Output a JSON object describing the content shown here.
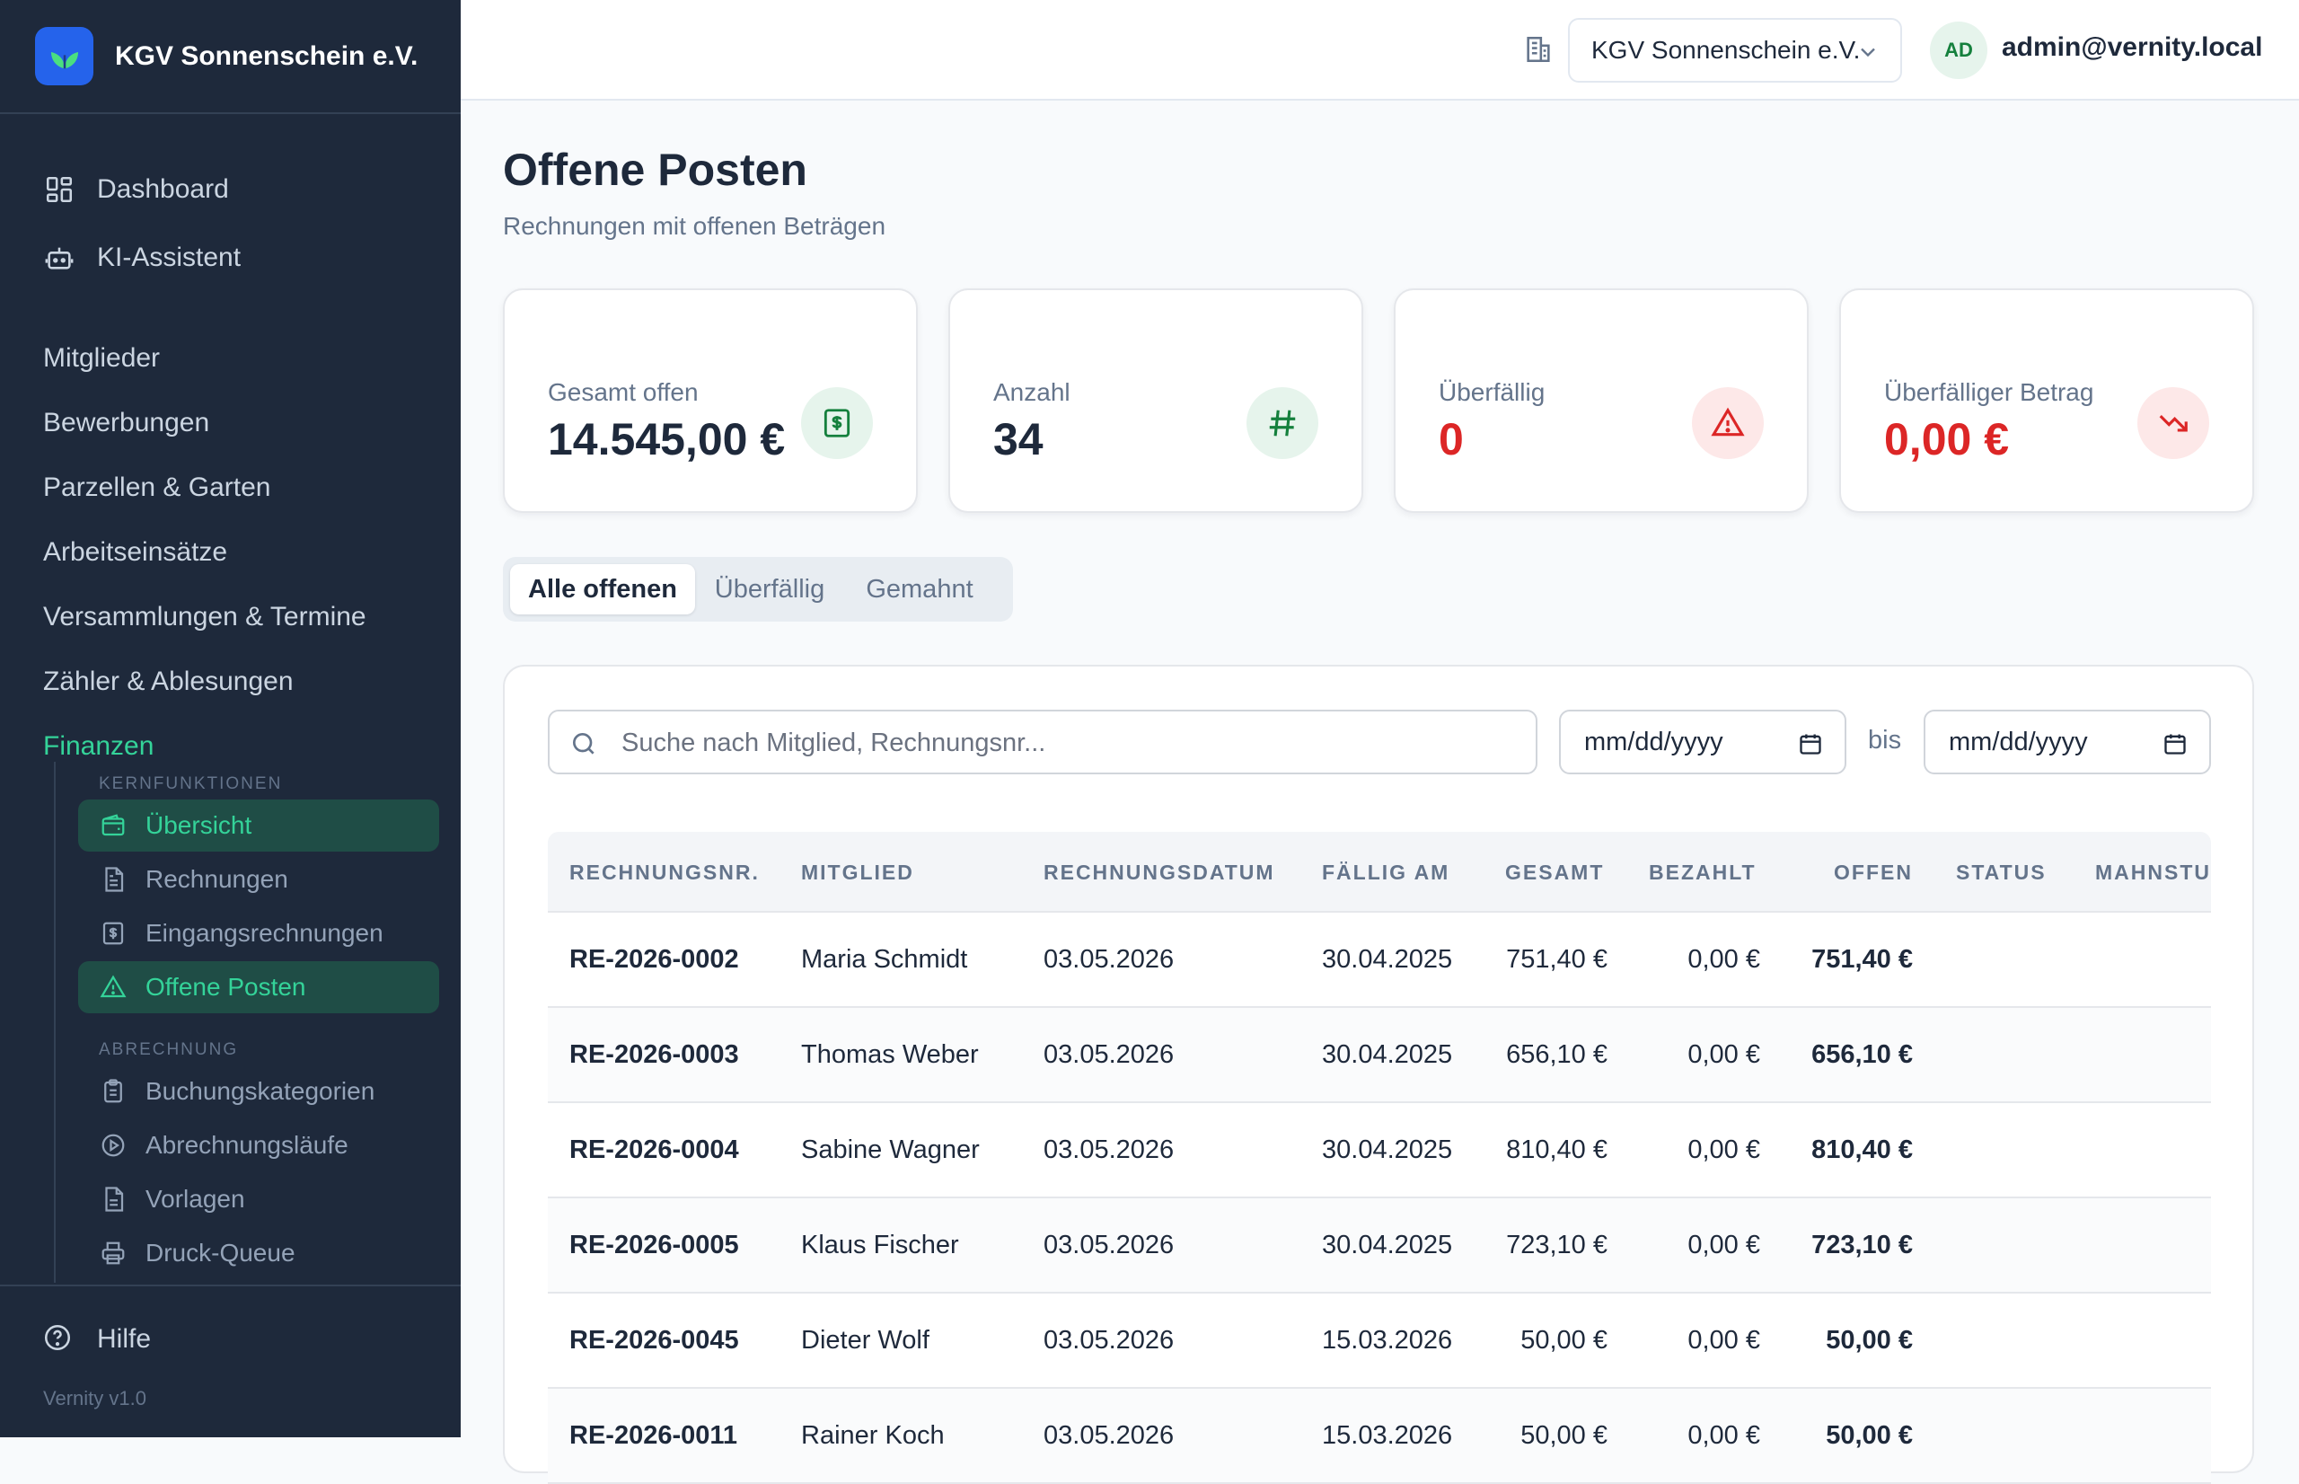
{
  "brand": {
    "name": "KGV Sonnenschein e.V."
  },
  "nav_top": [
    {
      "label": "Dashboard",
      "icon": "dashboard-icon"
    },
    {
      "label": "KI-Assistent",
      "icon": "robot-icon"
    }
  ],
  "nav_sections": [
    {
      "label": "Mitglieder"
    },
    {
      "label": "Bewerbungen"
    },
    {
      "label": "Parzellen & Garten"
    },
    {
      "label": "Arbeitseinsätze"
    },
    {
      "label": "Versammlungen & Termine"
    },
    {
      "label": "Zähler & Ablesungen"
    },
    {
      "label": "Finanzen"
    }
  ],
  "subnav": {
    "group1": "KERNFUNKTIONEN",
    "group1_items": [
      {
        "label": "Übersicht",
        "icon": "wallet-icon"
      },
      {
        "label": "Rechnungen",
        "icon": "document-icon"
      },
      {
        "label": "Eingangsrechnungen",
        "icon": "receipt-icon"
      },
      {
        "label": "Offene Posten",
        "icon": "warning-icon"
      }
    ],
    "group2": "ABRECHNUNG",
    "group2_items": [
      {
        "label": "Buchungskategorien",
        "icon": "clipboard-icon"
      },
      {
        "label": "Abrechnungsläufe",
        "icon": "play-circle-icon"
      },
      {
        "label": "Vorlagen",
        "icon": "document-icon"
      },
      {
        "label": "Druck-Queue",
        "icon": "printer-icon"
      }
    ]
  },
  "help": {
    "label": "Hilfe"
  },
  "version": "Vernity v1.0",
  "header": {
    "org_select": "KGV Sonnenschein e.V.",
    "avatar": "AD",
    "user_email": "admin@vernity.local"
  },
  "page": {
    "title": "Offene Posten",
    "subtitle": "Rechnungen mit offenen Beträgen"
  },
  "cards": [
    {
      "label": "Gesamt offen",
      "value": "14.545,00 €",
      "icon": "dollar-icon"
    },
    {
      "label": "Anzahl",
      "value": "34",
      "icon": "hash-icon"
    },
    {
      "label": "Überfällig",
      "value": "0",
      "icon": "warning-icon"
    },
    {
      "label": "Überfälliger Betrag",
      "value": "0,00 €",
      "icon": "trending-down-icon"
    }
  ],
  "colors": {
    "accent_green": "#34d399",
    "sidebar_bg": "#1e293b",
    "danger": "#dc2626"
  },
  "tabs": [
    {
      "label": "Alle offenen"
    },
    {
      "label": "Überfällig"
    },
    {
      "label": "Gemahnt"
    }
  ],
  "filters": {
    "search_placeholder": "Suche nach Mitglied, Rechnungsnr...",
    "date_from": "mm/dd/yyyy",
    "bis": "bis",
    "date_to": "mm/dd/yyyy"
  },
  "table": {
    "headers": [
      "RECHNUNGSNR.",
      "MITGLIED",
      "RECHNUNGSDATUM",
      "FÄLLIG AM",
      "GESAMT",
      "BEZAHLT",
      "OFFEN",
      "STATUS",
      "MAHNSTU"
    ],
    "rows": [
      [
        "RE-2026-0002",
        "Maria Schmidt",
        "03.05.2026",
        "30.04.2025",
        "751,40 €",
        "0,00 €",
        "751,40 €"
      ],
      [
        "RE-2026-0003",
        "Thomas Weber",
        "03.05.2026",
        "30.04.2025",
        "656,10 €",
        "0,00 €",
        "656,10 €"
      ],
      [
        "RE-2026-0004",
        "Sabine Wagner",
        "03.05.2026",
        "30.04.2025",
        "810,40 €",
        "0,00 €",
        "810,40 €"
      ],
      [
        "RE-2026-0005",
        "Klaus Fischer",
        "03.05.2026",
        "30.04.2025",
        "723,10 €",
        "0,00 €",
        "723,10 €"
      ],
      [
        "RE-2026-0045",
        "Dieter Wolf",
        "03.05.2026",
        "15.03.2026",
        "50,00 €",
        "0,00 €",
        "50,00 €"
      ],
      [
        "RE-2026-0011",
        "Rainer Koch",
        "03.05.2026",
        "15.03.2026",
        "50,00 €",
        "0,00 €",
        "50,00 €"
      ]
    ]
  }
}
